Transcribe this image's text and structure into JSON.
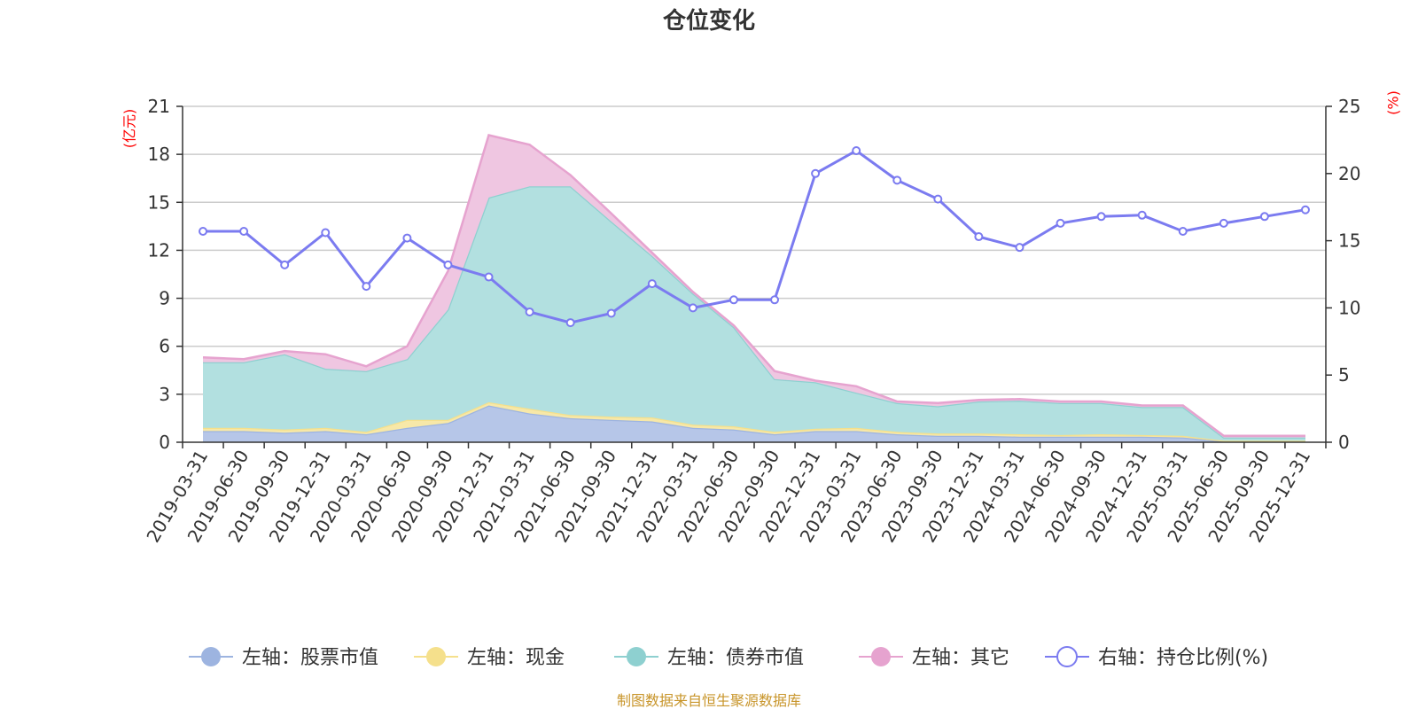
{
  "chart_data": {
    "type": "area",
    "title": "仓位变化",
    "left_unit": "(亿元)",
    "right_unit": "(%)",
    "source": "制图数据来自恒生聚源数据库",
    "left_axis": {
      "min": 0,
      "max": 21,
      "ticks": [
        0,
        3,
        6,
        9,
        12,
        15,
        18,
        21
      ]
    },
    "right_axis": {
      "min": 0,
      "max": 25,
      "ticks": [
        0,
        5,
        10,
        15,
        20,
        25
      ]
    },
    "categories": [
      "2019-03-31",
      "2019-06-30",
      "2019-09-30",
      "2019-12-31",
      "2020-03-31",
      "2020-06-30",
      "2020-09-30",
      "2020-12-31",
      "2021-03-31",
      "2021-06-30",
      "2021-09-30",
      "2021-12-31",
      "2022-03-31",
      "2022-06-30",
      "2022-09-30",
      "2022-12-31",
      "2023-03-31",
      "2023-06-30",
      "2023-09-30",
      "2023-12-31",
      "2024-03-31",
      "2024-06-30",
      "2024-09-30",
      "2024-12-31",
      "2025-03-31",
      "2025-06-30",
      "2025-09-30",
      "2025-12-31"
    ],
    "stacked_series": [
      {
        "name": "左轴：股票市值",
        "color": "#9db4e0",
        "fill": "#b6c6e8",
        "values": [
          0.7,
          0.7,
          0.6,
          0.7,
          0.5,
          0.9,
          1.2,
          2.3,
          1.8,
          1.5,
          1.4,
          1.3,
          0.9,
          0.8,
          0.5,
          0.7,
          0.7,
          0.5,
          0.4,
          0.4,
          0.35,
          0.35,
          0.35,
          0.35,
          0.3,
          0.05,
          0.05,
          0.05
        ]
      },
      {
        "name": "左轴：现金",
        "color": "#f5e08c",
        "fill": "#f7e8a8",
        "values": [
          0.2,
          0.2,
          0.2,
          0.2,
          0.15,
          0.5,
          0.2,
          0.2,
          0.3,
          0.2,
          0.2,
          0.25,
          0.2,
          0.2,
          0.15,
          0.15,
          0.2,
          0.15,
          0.15,
          0.15,
          0.15,
          0.1,
          0.15,
          0.1,
          0.1,
          0.05,
          0.05,
          0.05
        ]
      },
      {
        "name": "左轴：债券市值",
        "color": "#8ed0d0",
        "fill": "#b2e0e0",
        "values": [
          4.1,
          4.1,
          4.7,
          3.7,
          3.8,
          3.8,
          6.9,
          12.8,
          13.9,
          14.3,
          12.2,
          10.1,
          8.2,
          6.2,
          3.3,
          2.9,
          2.2,
          1.8,
          1.7,
          2.0,
          2.1,
          2.0,
          1.95,
          1.75,
          1.8,
          0.2,
          0.2,
          0.2
        ]
      },
      {
        "name": "左轴：其它",
        "color": "#e6a3cf",
        "fill": "#efc6e1",
        "values": [
          0.3,
          0.2,
          0.2,
          0.9,
          0.3,
          0.8,
          2.4,
          3.9,
          2.6,
          0.7,
          0.5,
          0.2,
          0.1,
          0.1,
          0.5,
          0.1,
          0.4,
          0.1,
          0.2,
          0.1,
          0.1,
          0.1,
          0.1,
          0.1,
          0.1,
          0.1,
          0.1,
          0.1
        ]
      }
    ],
    "line_series": {
      "name": "右轴：持仓比例(%)",
      "color": "#7b7bf0",
      "values": [
        15.7,
        15.7,
        13.2,
        15.6,
        11.6,
        15.2,
        13.2,
        12.3,
        9.7,
        8.9,
        9.6,
        11.8,
        10.0,
        10.6,
        10.6,
        20.0,
        21.7,
        19.5,
        18.1,
        15.3,
        14.5,
        16.3,
        16.8,
        16.9,
        15.7,
        16.3,
        16.8,
        17.3
      ]
    }
  }
}
